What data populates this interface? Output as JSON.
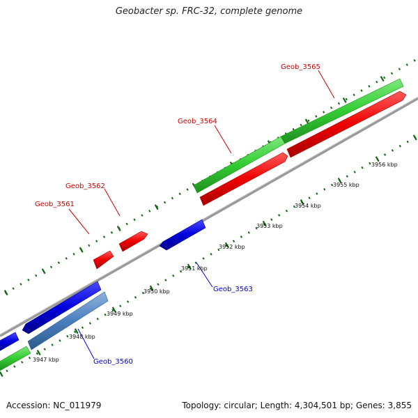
{
  "title": "Geobacter sp. FRC-32, complete genome",
  "footer": {
    "accession": "Accession: NC_011979",
    "summary": "Topology: circular; Length: 4,304,501 bp; Genes: 3,855"
  },
  "colors": {
    "forward_cds": "#33cc33",
    "forward_gene": "#ee0000",
    "reverse_cds": "#0000dd",
    "reverse_other": "#4a7fbf",
    "label_red": "#cc0000",
    "label_blue": "#0000cc",
    "tick_green": "#116611",
    "backbone": "#8a8a8a"
  },
  "scale_labels": [
    "3947 kbp",
    "3948 kbp",
    "3949 kbp",
    "3950 kbp",
    "3951 kbp",
    "3952 kbp",
    "3953 kbp",
    "3954 kbp",
    "3955 kbp",
    "3956 kbp"
  ],
  "gene_labels": [
    {
      "id": "geob-3560",
      "text": "Geob_3560",
      "color": "blue"
    },
    {
      "id": "geob-3561",
      "text": "Geob_3561",
      "color": "red"
    },
    {
      "id": "geob-3562",
      "text": "Geob_3562",
      "color": "red"
    },
    {
      "id": "geob-3563",
      "text": "Geob_3563",
      "color": "blue"
    },
    {
      "id": "geob-3564",
      "text": "Geob_3564",
      "color": "red"
    },
    {
      "id": "geob-3565",
      "text": "Geob_3565",
      "color": "red"
    }
  ]
}
